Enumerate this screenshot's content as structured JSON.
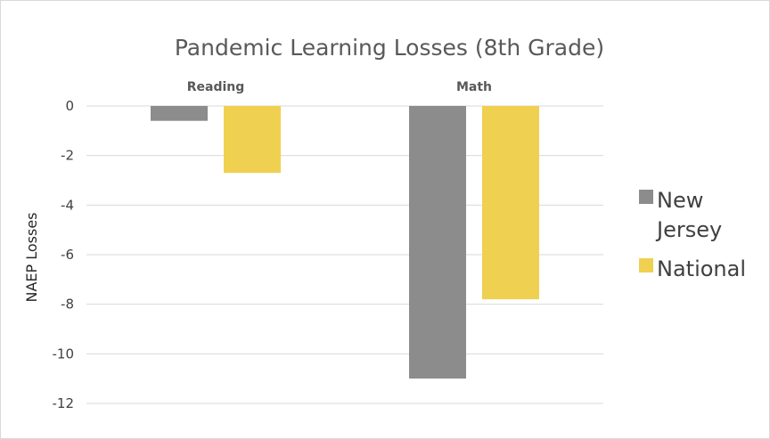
{
  "chart_data": {
    "type": "bar",
    "title": "Pandemic Learning Losses  (8th Grade)",
    "xlabel": "",
    "ylabel": "NAEP Losses",
    "categories": [
      "Reading",
      "Math"
    ],
    "series": [
      {
        "name": "New Jersey",
        "values": [
          -0.6,
          -11
        ],
        "color": "#8c8c8c"
      },
      {
        "name": "National",
        "values": [
          -2.7,
          -7.8
        ],
        "color": "#f0d050"
      }
    ],
    "ylim": [
      -12,
      0
    ],
    "yticks": [
      0,
      -2,
      -4,
      -6,
      -8,
      -10,
      -12
    ],
    "grid": true,
    "legend_position": "right",
    "legend_labels": [
      {
        "lines": [
          "New",
          "Jersey"
        ]
      },
      {
        "lines": [
          "National"
        ]
      }
    ]
  }
}
